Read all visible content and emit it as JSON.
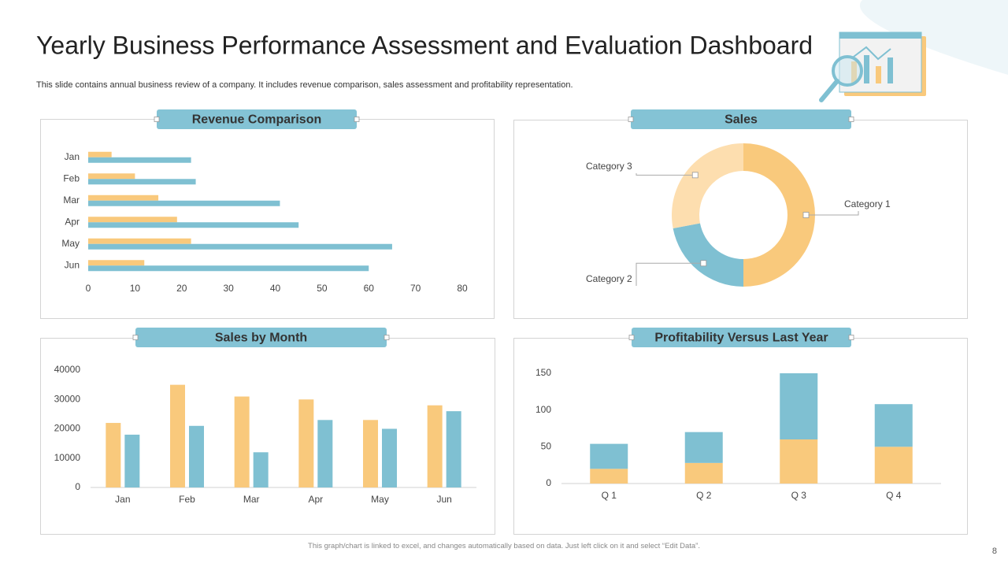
{
  "header": {
    "title": "Yearly Business Performance Assessment and Evaluation Dashboard",
    "subtitle": "This slide contains annual business review of a company. It includes revenue comparison, sales assessment and profitability representation."
  },
  "chart_data": [
    {
      "type": "barh",
      "title": "Revenue Comparison",
      "categories": [
        "Jan",
        "Feb",
        "Mar",
        "Apr",
        "May",
        "Jun"
      ],
      "series": [
        {
          "color": "#f9c97c",
          "values": [
            5,
            10,
            15,
            19,
            22,
            12
          ]
        },
        {
          "color": "#7fc0d2",
          "values": [
            22,
            23,
            41,
            45,
            65,
            60
          ]
        }
      ],
      "xlim": [
        0,
        80
      ],
      "xticks": [
        0,
        10,
        20,
        30,
        40,
        50,
        60,
        70,
        80
      ]
    },
    {
      "type": "donut",
      "title": "Sales",
      "categories": [
        "Category 1",
        "Category 2",
        "Category 3"
      ],
      "values": [
        50,
        22,
        28
      ],
      "colors": [
        "#f9c97c",
        "#7fc0d2",
        "#fddeaf"
      ]
    },
    {
      "type": "bar",
      "title": "Sales by Month",
      "categories": [
        "Jan",
        "Feb",
        "Mar",
        "Apr",
        "May",
        "Jun"
      ],
      "series": [
        {
          "color": "#f9c97c",
          "values": [
            22000,
            35000,
            31000,
            30000,
            23000,
            28000
          ]
        },
        {
          "color": "#7fc0d2",
          "values": [
            18000,
            21000,
            12000,
            23000,
            20000,
            26000
          ]
        }
      ],
      "ylim": [
        0,
        40000
      ],
      "yticks": [
        0,
        10000,
        20000,
        30000,
        40000
      ],
      "stacked": false
    },
    {
      "type": "bar",
      "title": "Profitability  Versus Last Year",
      "categories": [
        "Q 1",
        "Q 2",
        "Q 3",
        "Q 4"
      ],
      "series": [
        {
          "color": "#f9c97c",
          "values": [
            20,
            28,
            60,
            50
          ]
        },
        {
          "color": "#7fc0d2",
          "values": [
            34,
            42,
            90,
            58
          ]
        }
      ],
      "ylim": [
        0,
        150
      ],
      "yticks": [
        0,
        50,
        100,
        150
      ],
      "stacked": true
    }
  ],
  "footer": {
    "note": "This graph/chart is linked to excel, and changes automatically based on data. Just left click on it and select “Edit Data”.",
    "page_number": 8
  }
}
